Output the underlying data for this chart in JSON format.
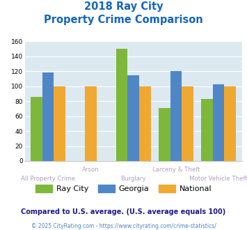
{
  "title_line1": "2018 Ray City",
  "title_line2": "Property Crime Comparison",
  "categories": [
    "All Property Crime",
    "Arson",
    "Burglary",
    "Larceny & Theft",
    "Motor Vehicle Theft"
  ],
  "ray_city": [
    86,
    null,
    150,
    71,
    83
  ],
  "georgia": [
    118,
    null,
    115,
    120,
    103
  ],
  "national": [
    100,
    100,
    100,
    100,
    100
  ],
  "colors": {
    "ray_city": "#7db83a",
    "georgia": "#4f86c6",
    "national": "#f0a830"
  },
  "ylim": [
    0,
    160
  ],
  "yticks": [
    0,
    20,
    40,
    60,
    80,
    100,
    120,
    140,
    160
  ],
  "xlabel_color": "#b0a0c0",
  "title_color": "#1565c0",
  "legend_text_color": "#222222",
  "footer_note": "Compared to U.S. average. (U.S. average equals 100)",
  "footer_copy": "© 2025 CityRating.com - https://www.cityrating.com/crime-statistics/",
  "footer_note_color": "#1a1a8c",
  "footer_copy_color": "#4f86c6",
  "bg_color": "#dce9f0",
  "group_positions": [
    0,
    1,
    2,
    3,
    4
  ]
}
